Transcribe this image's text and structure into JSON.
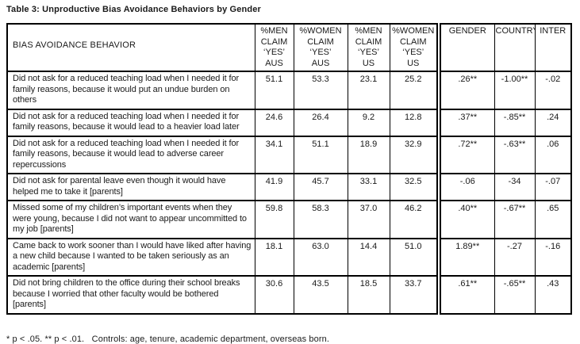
{
  "page": {
    "title": "Table 3: Unproductive Bias Avoidance Behaviors by Gender",
    "footnote": "* p < .05. ** p < .01.   Controls: age, tenure, academic department, overseas born."
  },
  "table": {
    "behavior_header": "BIAS AVOIDANCE BEHAVIOR",
    "value_headers": [
      "%MEN\nCLAIM\n‘YES’\nAUS",
      "%WOMEN\nCLAIM\n‘YES’\nAUS",
      "%MEN\nCLAIM\n‘YES’\nUS",
      "%WOMEN\nCLAIM\n‘YES’\nUS",
      "GENDER",
      "COUNTRY",
      "INTER"
    ],
    "rows": [
      {
        "behavior": "Did not ask for a reduced teaching load when I needed it for family reasons, because it would put an undue burden on others",
        "values": [
          "51.1",
          "53.3",
          "23.1",
          "25.2",
          ".26**",
          "-1.00**",
          "-.02"
        ]
      },
      {
        "behavior": "Did not ask for a reduced teaching load when I needed it for family reasons, because it would lead to a heavier load later",
        "values": [
          "24.6",
          "26.4",
          "9.2",
          "12.8",
          ".37**",
          "-.85**",
          ".24"
        ]
      },
      {
        "behavior": "Did not ask for a reduced teaching load when I needed it for family reasons, because it would lead to adverse career repercussions",
        "values": [
          "34.1",
          "51.1",
          "18.9",
          "32.9",
          ".72**",
          "-.63**",
          ".06"
        ]
      },
      {
        "behavior": "Did not ask for parental leave even though it would have helped me to take it [parents]",
        "values": [
          "41.9",
          "45.7",
          "33.1",
          "32.5",
          "-.06",
          "-34",
          "-.07"
        ]
      },
      {
        "behavior": "Missed some of my children’s important events when they were young, because I did not want to appear uncommitted to my job [parents]",
        "values": [
          "59.8",
          "58.3",
          "37.0",
          "46.2",
          ".40**",
          "-.67**",
          ".65"
        ]
      },
      {
        "behavior": "Came back to work sooner than I would have liked after having a new child because I wanted to be taken seriously as an academic [parents]",
        "values": [
          "18.1",
          "63.0",
          "14.4",
          "51.0",
          "1.89**",
          "-.27",
          "-.16"
        ]
      },
      {
        "behavior": "Did not bring children to the office during their school breaks because I worried that other faculty would be bothered [parents]",
        "values": [
          "30.6",
          "43.5",
          "18.5",
          "33.7",
          ".61**",
          "-.65**",
          ".43"
        ]
      }
    ]
  }
}
